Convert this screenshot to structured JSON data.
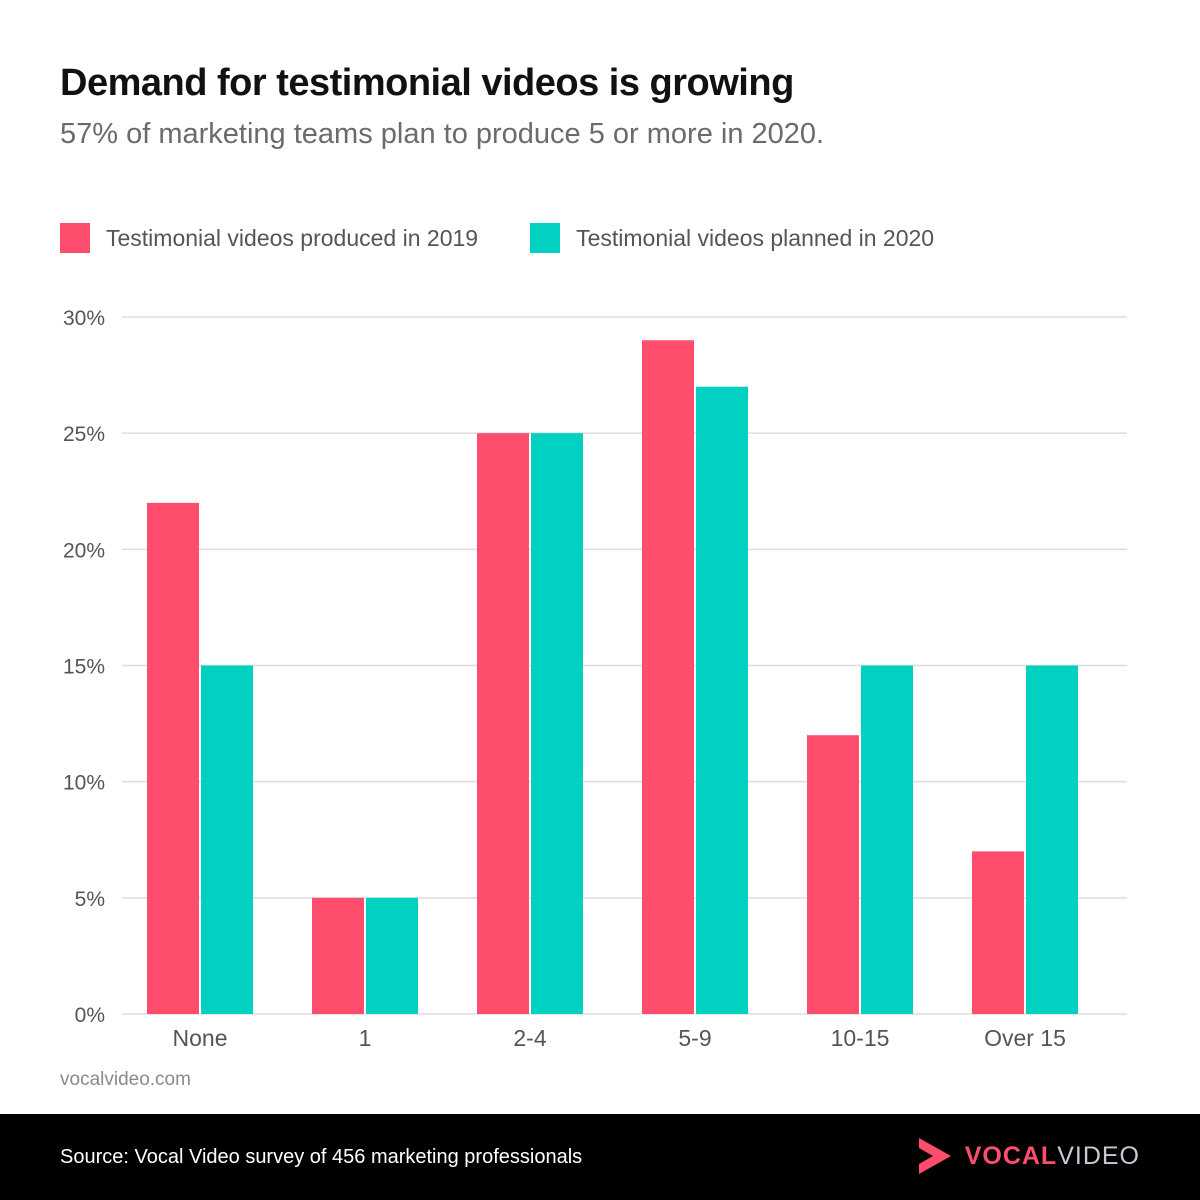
{
  "header": {
    "title": "Demand for testimonial videos is growing",
    "subtitle": "57% of marketing teams plan to produce 5 or more in 2020."
  },
  "colors": {
    "series_2019": "#ff4d6d",
    "series_2020": "#00d1c1",
    "grid": "#dedede",
    "tick_text": "#555555"
  },
  "chart_data": {
    "type": "bar",
    "categories": [
      "None",
      "1",
      "2-4",
      "5-9",
      "10-15",
      "Over 15"
    ],
    "series": [
      {
        "name": "Testimonial videos produced in 2019",
        "values": [
          22,
          5,
          25,
          29,
          12,
          7
        ]
      },
      {
        "name": "Testimonial videos planned in 2020",
        "values": [
          15,
          5,
          25,
          27,
          15,
          15
        ]
      }
    ],
    "y_ticks": [
      0,
      5,
      10,
      15,
      20,
      25,
      30
    ],
    "y_tick_suffix": "%",
    "ylim": [
      0,
      30
    ],
    "grid": true,
    "legend_position": "top-left"
  },
  "footer": {
    "site": "vocalvideo.com",
    "source": "Source: Vocal Video survey of 456 marketing professionals",
    "logo_part1": "VOCAL",
    "logo_part2": "VIDEO",
    "logo_icon": "play-triangle-icon"
  }
}
